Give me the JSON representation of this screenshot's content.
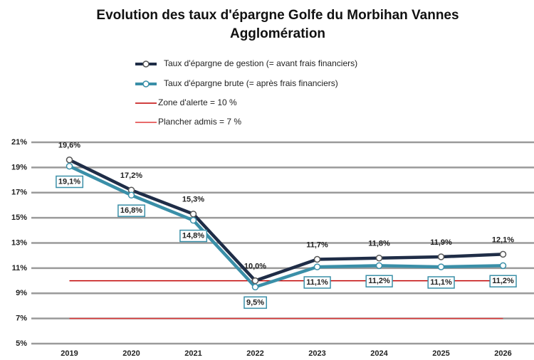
{
  "chart_data": {
    "type": "line",
    "title_lines": [
      "Evolution des taux d'épargne Golfe du Morbihan Vannes",
      "Agglomération"
    ],
    "categories": [
      "2019",
      "2020",
      "2021",
      "2022",
      "2023",
      "2024",
      "2025",
      "2026"
    ],
    "series": [
      {
        "name": "Taux d'épargne de gestion (= avant frais financiers)",
        "color": "#1f2d47",
        "values": [
          19.6,
          17.2,
          15.3,
          10.0,
          11.7,
          11.8,
          11.9,
          12.1
        ],
        "value_labels": [
          "19,6%",
          "17,2%",
          "15,3%",
          "10,0%",
          "11,7%",
          "11,8%",
          "11,9%",
          "12,1%"
        ]
      },
      {
        "name": "Taux d'épargne brute (= après frais financiers)",
        "color": "#3a8fa8",
        "values": [
          19.1,
          16.8,
          14.8,
          9.5,
          11.1,
          11.2,
          11.1,
          11.2
        ],
        "value_labels": [
          "19,1%",
          "16,8%",
          "14,8%",
          "9,5%",
          "11,1%",
          "11,2%",
          "11,1%",
          "11,2%"
        ]
      }
    ],
    "reference_lines": [
      {
        "name": "Zone d'alerte = 10 %",
        "value": 10,
        "color": "#c00000"
      },
      {
        "name": "Plancher admis = 7 %",
        "value": 7,
        "color": "#e03a3a"
      }
    ],
    "ylim": [
      5,
      21
    ],
    "yticks": [
      {
        "value": 5,
        "label": "5%"
      },
      {
        "value": 7,
        "label": "7%"
      },
      {
        "value": 9,
        "label": "9%"
      },
      {
        "value": 11,
        "label": "11%"
      },
      {
        "value": 13,
        "label": "13%"
      },
      {
        "value": 15,
        "label": "15%"
      },
      {
        "value": 17,
        "label": "17%"
      },
      {
        "value": 19,
        "label": "19%"
      },
      {
        "value": 21,
        "label": "21%"
      }
    ],
    "grid": true
  }
}
